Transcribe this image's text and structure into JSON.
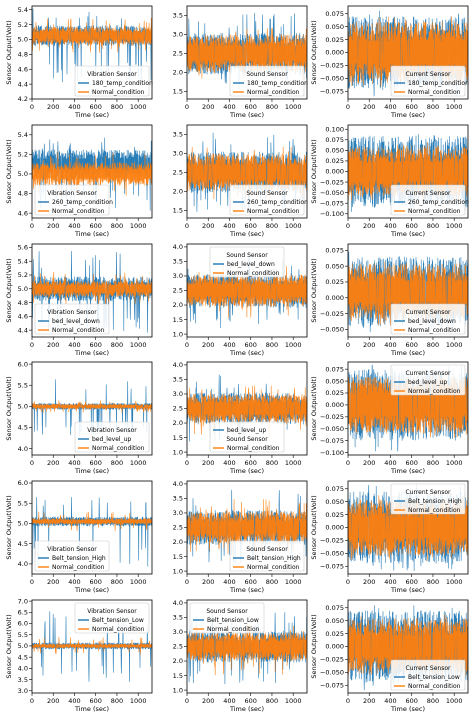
{
  "colors": {
    "test": "#1f77b4",
    "normal": "#ff7f0e",
    "axis": "#000000",
    "legend_border": "#cccccc"
  },
  "chart_data": [
    {
      "type": "line",
      "sensor": "Vibration Sensor",
      "legend": [
        "Vibration Sensor",
        "180_temp_condition",
        "Normal_condition"
      ],
      "legend_position": "bottom-right",
      "xlabel": "Time (sec)",
      "ylabel": "Sensor Output(Volt)",
      "xticks": [
        "0",
        "200",
        "400",
        "600",
        "800",
        "1000"
      ],
      "xlim": [
        0,
        1130
      ],
      "yticks": [
        "4.2",
        "4.4",
        "4.6",
        "4.8",
        "5.0",
        "5.2",
        "5.4"
      ],
      "ylim": [
        4.2,
        5.45
      ],
      "series": [
        {
          "name": "180_temp_condition",
          "center": 5.05,
          "amp": 0.14,
          "spike_down": 4.42,
          "spike_up": 5.42
        },
        {
          "name": "Normal_condition",
          "center": 5.05,
          "amp": 0.12,
          "spike_down": 4.82,
          "spike_up": 5.3
        }
      ]
    },
    {
      "type": "line",
      "sensor": "Sound Sensor",
      "legend": [
        "Sound Sensor",
        "180_temp_condition",
        "Normal_condition"
      ],
      "legend_position": "bottom-right",
      "xlabel": "Time (sec)",
      "ylabel": "",
      "xticks": [
        "0",
        "200",
        "400",
        "600",
        "800",
        "1000"
      ],
      "xlim": [
        0,
        1130
      ],
      "yticks": [
        "1.5",
        "2.0",
        "2.5",
        "3.0",
        "3.5"
      ],
      "ylim": [
        1.3,
        3.75
      ],
      "series": [
        {
          "name": "180_temp_condition",
          "center": 2.5,
          "amp": 0.55,
          "spike_down": 1.45,
          "spike_up": 3.6
        },
        {
          "name": "Normal_condition",
          "center": 2.5,
          "amp": 0.5,
          "spike_down": 1.8,
          "spike_up": 3.2
        }
      ]
    },
    {
      "type": "line",
      "sensor": "Current Sensor",
      "legend": [
        "Current Sensor",
        "180_temp_condition",
        "Normal_condition"
      ],
      "legend_position": "bottom-right",
      "xlabel": "Time (sec)",
      "ylabel": "Sensor Output(Volt)",
      "xticks": [
        "0",
        "200",
        "400",
        "600",
        "800",
        "1000"
      ],
      "xlim": [
        0,
        1130
      ],
      "yticks": [
        "−0.075",
        "−0.050",
        "−0.025",
        "0.000",
        "0.025",
        "0.050",
        "0.075"
      ],
      "ylim": [
        -0.09,
        0.09
      ],
      "series": [
        {
          "name": "180_temp_condition",
          "center": 0.0,
          "amp": 0.07,
          "spike_down": -0.085,
          "spike_up": 0.085
        },
        {
          "name": "Normal_condition",
          "center": 0.0,
          "amp": 0.06,
          "spike_down": -0.07,
          "spike_up": 0.07
        }
      ]
    },
    {
      "type": "line",
      "sensor": "Vibration Sensor",
      "legend": [
        "Vibration Sensor",
        "260_temp_condition",
        "Normal_condition"
      ],
      "legend_position": "bottom-left",
      "xlabel": "Time (sec)",
      "ylabel": "Sensor Output(Volt)",
      "xticks": [
        "0",
        "200",
        "400",
        "600",
        "800",
        "1000"
      ],
      "xlim": [
        0,
        1130
      ],
      "yticks": [
        "4.6",
        "4.8",
        "5.0",
        "5.2",
        "5.4"
      ],
      "ylim": [
        4.55,
        5.5
      ],
      "series": [
        {
          "name": "260_temp_condition",
          "center": 5.1,
          "amp": 0.15,
          "spike_down": 4.62,
          "spike_up": 5.38
        },
        {
          "name": "Normal_condition",
          "center": 5.0,
          "amp": 0.12,
          "spike_down": 4.75,
          "spike_up": 5.25
        }
      ]
    },
    {
      "type": "line",
      "sensor": "Sound Sensor",
      "legend": [
        "Sound Sensor",
        "260_temp_condition",
        "Normal_condition"
      ],
      "legend_position": "bottom-right",
      "xlabel": "Time (sec)",
      "ylabel": "",
      "xticks": [
        "0",
        "200",
        "400",
        "600",
        "800",
        "1000"
      ],
      "xlim": [
        0,
        1130
      ],
      "yticks": [
        "1.5",
        "2.0",
        "2.5",
        "3.0",
        "3.5"
      ],
      "ylim": [
        1.3,
        3.75
      ],
      "series": [
        {
          "name": "260_temp_condition",
          "center": 2.5,
          "amp": 0.55,
          "spike_down": 1.45,
          "spike_up": 3.55
        },
        {
          "name": "Normal_condition",
          "center": 2.5,
          "amp": 0.5,
          "spike_down": 1.8,
          "spike_up": 3.2
        }
      ]
    },
    {
      "type": "line",
      "sensor": "Current Sensor",
      "legend": [
        "Current Sensor",
        "260_temp_condition",
        "Normal_condition"
      ],
      "legend_position": "bottom-right",
      "xlabel": "Time (sec)",
      "ylabel": "Sensor Output(Volt)",
      "xticks": [
        "0",
        "200",
        "400",
        "600",
        "800",
        "1000"
      ],
      "xlim": [
        0,
        1130
      ],
      "yticks": [
        "−0.100",
        "−0.075",
        "−0.050",
        "−0.025",
        "0.000",
        "0.025",
        "0.050",
        "0.075",
        "0.100"
      ],
      "ylim": [
        -0.11,
        0.11
      ],
      "series": [
        {
          "name": "260_temp_condition",
          "center": 0.0,
          "amp": 0.085,
          "spike_down": -0.1,
          "spike_up": 0.1
        },
        {
          "name": "Normal_condition",
          "center": 0.0,
          "amp": 0.06,
          "spike_down": -0.07,
          "spike_up": 0.07
        }
      ]
    },
    {
      "type": "line",
      "sensor": "Vibration Sensor",
      "legend": [
        "Vibration Sensor",
        "bed_level_down",
        "Normal_condition"
      ],
      "legend_position": "bottom-left",
      "xlabel": "Time (sec)",
      "ylabel": "Sensor Output(Volt)",
      "xticks": [
        "0",
        "200",
        "400",
        "600",
        "800",
        "1000"
      ],
      "xlim": [
        0,
        1130
      ],
      "yticks": [
        "4.4",
        "4.6",
        "4.8",
        "5.0",
        "5.2",
        "5.4",
        "5.6"
      ],
      "ylim": [
        4.3,
        5.65
      ],
      "series": [
        {
          "name": "bed_level_down",
          "center": 5.0,
          "amp": 0.18,
          "spike_down": 4.35,
          "spike_up": 5.55
        },
        {
          "name": "Normal_condition",
          "center": 5.0,
          "amp": 0.12,
          "spike_down": 4.75,
          "spike_up": 5.25
        }
      ]
    },
    {
      "type": "line",
      "sensor": "Sound Sensor",
      "legend": [
        "Sound Sensor",
        "bed_level_down",
        "Normal_condition"
      ],
      "legend_position": "top-center",
      "xlabel": "Time (sec)",
      "ylabel": "",
      "xticks": [
        "0",
        "200",
        "400",
        "600",
        "800",
        "1000"
      ],
      "xlim": [
        0,
        1130
      ],
      "yticks": [
        "1.0",
        "1.5",
        "2.0",
        "2.5",
        "3.0",
        "3.5",
        "4.0"
      ],
      "ylim": [
        0.9,
        4.1
      ],
      "series": [
        {
          "name": "bed_level_down",
          "center": 2.5,
          "amp": 0.6,
          "spike_down": 1.2,
          "spike_up": 3.8
        },
        {
          "name": "Normal_condition",
          "center": 2.5,
          "amp": 0.55,
          "spike_down": 1.5,
          "spike_up": 3.5
        }
      ]
    },
    {
      "type": "line",
      "sensor": "Current Sensor",
      "legend": [
        "Current Sensor",
        "bed_level_down",
        "Normal_condition"
      ],
      "legend_position": "bottom-right",
      "xlabel": "Time (sec)",
      "ylabel": "Sensor Output(Volt)",
      "xticks": [
        "0",
        "200",
        "400",
        "600",
        "800",
        "1000"
      ],
      "xlim": [
        0,
        1130
      ],
      "yticks": [
        "−0.050",
        "−0.025",
        "0.000",
        "0.025",
        "0.050",
        "0.075"
      ],
      "ylim": [
        -0.062,
        0.085
      ],
      "series": [
        {
          "name": "bed_level_down",
          "center": 0.01,
          "amp": 0.055,
          "spike_down": -0.055,
          "spike_up": 0.078
        },
        {
          "name": "Normal_condition",
          "center": 0.01,
          "amp": 0.045,
          "spike_down": -0.045,
          "spike_up": 0.065
        }
      ]
    },
    {
      "type": "line",
      "sensor": "Vibration Sensor",
      "legend": [
        "Vibration Sensor",
        "bed_level_up",
        "Normal_condition"
      ],
      "legend_position": "bottom-right",
      "xlabel": "Time (sec)",
      "ylabel": "Sensor Output(Volt)",
      "xticks": [
        "0",
        "200",
        "400",
        "600",
        "800",
        "1000"
      ],
      "xlim": [
        0,
        1130
      ],
      "yticks": [
        "4.0",
        "4.5",
        "5.0",
        "5.5",
        "6.0"
      ],
      "ylim": [
        3.85,
        6.05
      ],
      "series": [
        {
          "name": "bed_level_up",
          "center": 5.0,
          "amp": 0.08,
          "spike_down": 4.3,
          "spike_up": 5.7
        },
        {
          "name": "Normal_condition",
          "center": 5.0,
          "amp": 0.06,
          "spike_down": 4.85,
          "spike_up": 5.15
        }
      ]
    },
    {
      "type": "line",
      "sensor": "Sound Sensor",
      "legend": [
        "bed_level_up",
        "Sound Sensor",
        "Normal_condition"
      ],
      "legend_position": "bottom-center",
      "xlabel": "Time (sec)",
      "ylabel": "",
      "xticks": [
        "0",
        "200",
        "400",
        "600",
        "800",
        "1000"
      ],
      "xlim": [
        0,
        1130
      ],
      "yticks": [
        "1.0",
        "1.5",
        "2.0",
        "2.5",
        "3.0",
        "3.5",
        "4.0"
      ],
      "ylim": [
        0.9,
        4.1
      ],
      "series": [
        {
          "name": "bed_level_up",
          "center": 2.5,
          "amp": 0.55,
          "spike_down": 1.2,
          "spike_up": 3.7
        },
        {
          "name": "Normal_condition",
          "center": 2.5,
          "amp": 0.5,
          "spike_down": 1.5,
          "spike_up": 3.4
        }
      ]
    },
    {
      "type": "line",
      "sensor": "Current Sensor",
      "legend": [
        "Current Sensor",
        "bed_level_up",
        "Normal_condition"
      ],
      "legend_position": "top-right",
      "xlabel": "Time (sec)",
      "ylabel": "Sensor Output(Volt)",
      "xticks": [
        "0",
        "200",
        "400",
        "600",
        "800",
        "1000"
      ],
      "xlim": [
        0,
        1130
      ],
      "yticks": [
        "−0.100",
        "−0.075",
        "−0.050",
        "−0.025",
        "0.000",
        "0.025",
        "0.050",
        "0.075"
      ],
      "ylim": [
        -0.105,
        0.09
      ],
      "series": [
        {
          "name": "bed_level_up",
          "center": 0.0,
          "amp": 0.075,
          "spike_down": -0.098,
          "spike_up": 0.085
        },
        {
          "name": "Normal_condition",
          "center": 0.0,
          "amp": 0.06,
          "spike_down": -0.07,
          "spike_up": 0.07
        }
      ]
    },
    {
      "type": "line",
      "sensor": "Vibration Sensor",
      "legend": [
        "Vibration Sensor",
        "Belt_tension_High",
        "Normal_condition"
      ],
      "legend_position": "bottom-left",
      "xlabel": "Time (sec)",
      "ylabel": "Sensor Output(Volt)",
      "xticks": [
        "0",
        "200",
        "400",
        "600",
        "800",
        "1000"
      ],
      "xlim": [
        0,
        1130
      ],
      "yticks": [
        "4.0",
        "4.5",
        "5.0",
        "5.5",
        "6.0"
      ],
      "ylim": [
        3.75,
        6.05
      ],
      "series": [
        {
          "name": "Belt_tension_High",
          "center": 5.05,
          "amp": 0.12,
          "spike_down": 3.9,
          "spike_up": 5.7
        },
        {
          "name": "Normal_condition",
          "center": 5.05,
          "amp": 0.08,
          "spike_down": 4.8,
          "spike_up": 5.3
        }
      ]
    },
    {
      "type": "line",
      "sensor": "Sound Sensor",
      "legend": [
        "Sound Sensor",
        "Belt_tension_High",
        "Normal_condition"
      ],
      "legend_position": "bottom-right",
      "xlabel": "Time (sec)",
      "ylabel": "",
      "xticks": [
        "0",
        "200",
        "400",
        "600",
        "800",
        "1000"
      ],
      "xlim": [
        0,
        1130
      ],
      "yticks": [
        "1.0",
        "1.5",
        "2.0",
        "2.5",
        "3.0",
        "3.5",
        "4.0"
      ],
      "ylim": [
        0.9,
        4.1
      ],
      "series": [
        {
          "name": "Belt_tension_High",
          "center": 2.5,
          "amp": 0.6,
          "spike_down": 1.2,
          "spike_up": 3.8
        },
        {
          "name": "Normal_condition",
          "center": 2.5,
          "amp": 0.55,
          "spike_down": 1.5,
          "spike_up": 3.5
        }
      ]
    },
    {
      "type": "line",
      "sensor": "Current Sensor",
      "legend": [
        "Current Sensor",
        "Belt_tension_High",
        "Normal_condition"
      ],
      "legend_position": "top-right",
      "xlabel": "Time (sec)",
      "ylabel": "Sensor Output(Volt)",
      "xticks": [
        "0",
        "200",
        "400",
        "600",
        "800",
        "1000"
      ],
      "xlim": [
        0,
        1130
      ],
      "yticks": [
        "−0.075",
        "−0.050",
        "−0.025",
        "0.000",
        "0.025",
        "0.050",
        "0.075"
      ],
      "ylim": [
        -0.09,
        0.09
      ],
      "series": [
        {
          "name": "Belt_tension_High",
          "center": 0.0,
          "amp": 0.07,
          "spike_down": -0.085,
          "spike_up": 0.085
        },
        {
          "name": "Normal_condition",
          "center": 0.0,
          "amp": 0.055,
          "spike_down": -0.065,
          "spike_up": 0.065
        }
      ]
    },
    {
      "type": "line",
      "sensor": "Vibration Sensor",
      "legend": [
        "Vibration Sensor",
        "Belt_tension_Low",
        "Normal_condition"
      ],
      "legend_position": "top-right",
      "xlabel": "Time (sec)",
      "ylabel": "Sensor Output(Volt)",
      "xticks": [
        "0",
        "200",
        "400",
        "600",
        "800",
        "1000"
      ],
      "xlim": [
        0,
        1130
      ],
      "yticks": [
        "3.0",
        "3.5",
        "4.0",
        "4.5",
        "5.0",
        "5.5",
        "6.0",
        "6.5",
        "7.0"
      ],
      "ylim": [
        2.9,
        7.05
      ],
      "series": [
        {
          "name": "Belt_tension_Low",
          "center": 5.0,
          "amp": 0.15,
          "spike_down": 3.4,
          "spike_up": 6.6
        },
        {
          "name": "Normal_condition",
          "center": 5.0,
          "amp": 0.1,
          "spike_down": 4.6,
          "spike_up": 5.4
        }
      ]
    },
    {
      "type": "line",
      "sensor": "Sound Sensor",
      "legend": [
        "Sound Sensor",
        "Belt_tension_Low",
        "Normal_condition"
      ],
      "legend_position": "top-left",
      "xlabel": "Time (sec)",
      "ylabel": "",
      "xticks": [
        "0",
        "200",
        "400",
        "600",
        "800",
        "1000"
      ],
      "xlim": [
        0,
        1130
      ],
      "yticks": [
        "1.0",
        "1.5",
        "2.0",
        "2.5",
        "3.0",
        "3.5",
        "4.0"
      ],
      "ylim": [
        0.9,
        4.1
      ],
      "series": [
        {
          "name": "Belt_tension_Low",
          "center": 2.5,
          "amp": 0.55,
          "spike_down": 1.2,
          "spike_up": 3.7
        },
        {
          "name": "Normal_condition",
          "center": 2.5,
          "amp": 0.5,
          "spike_down": 1.5,
          "spike_up": 3.4
        }
      ]
    },
    {
      "type": "line",
      "sensor": "Current Sensor",
      "legend": [
        "Current Sensor",
        "Belt_tension_Low",
        "Normal_condition"
      ],
      "legend_position": "bottom-right",
      "xlabel": "Time (sec)",
      "ylabel": "Sensor Output(Volt)",
      "xticks": [
        "0",
        "200",
        "400",
        "600",
        "800",
        "1000"
      ],
      "xlim": [
        0,
        1130
      ],
      "yticks": [
        "−0.075",
        "−0.050",
        "−0.025",
        "0.000",
        "0.025",
        "0.050",
        "0.075"
      ],
      "ylim": [
        -0.09,
        0.09
      ],
      "series": [
        {
          "name": "Belt_tension_Low",
          "center": 0.0,
          "amp": 0.07,
          "spike_down": -0.085,
          "spike_up": 0.085
        },
        {
          "name": "Normal_condition",
          "center": 0.0,
          "amp": 0.055,
          "spike_down": -0.065,
          "spike_up": 0.065
        }
      ]
    }
  ]
}
